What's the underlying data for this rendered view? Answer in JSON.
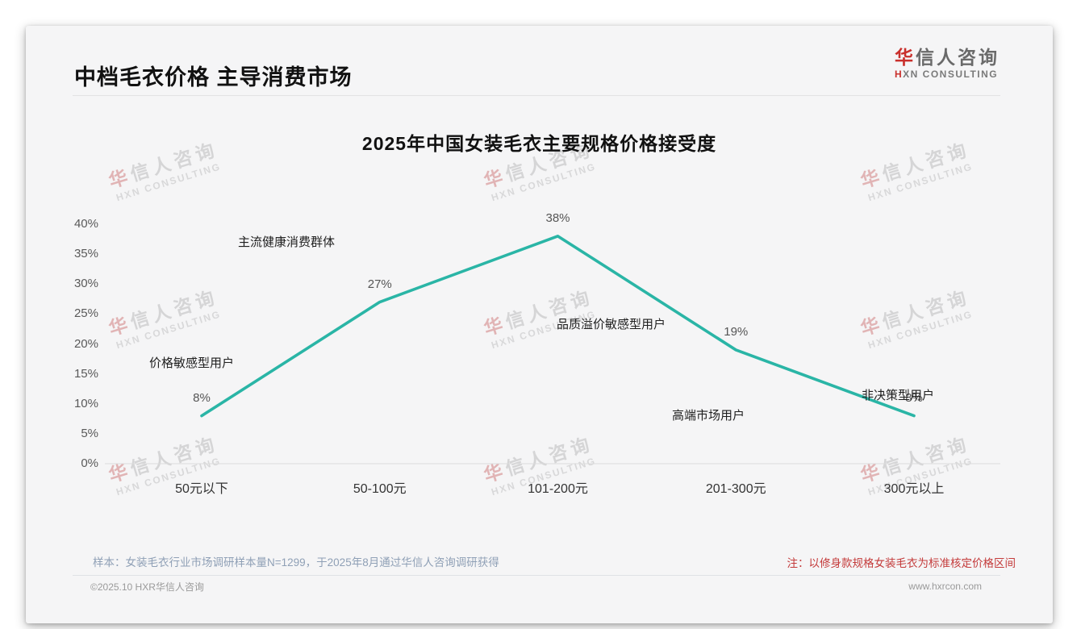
{
  "page": {
    "title": "中档毛衣价格 主导消费市场",
    "logo": {
      "first": "华",
      "rest": "信人咨询",
      "sub_first": "H",
      "sub_rest": "XN CONSULTING"
    },
    "watermark": {
      "first": "华",
      "rest": "信人咨询",
      "sub": "HXN CONSULTING"
    }
  },
  "chart_data": {
    "type": "line",
    "title": "2025年中国女装毛衣主要规格价格接受度",
    "categories": [
      "50元以下",
      "50-100元",
      "101-200元",
      "201-300元",
      "300元以上"
    ],
    "values": [
      8,
      27,
      38,
      19,
      8
    ],
    "value_suffix": "%",
    "ylabel": "",
    "xlabel": "",
    "ylim": [
      0,
      40
    ],
    "ytick_step": 5,
    "grid": false,
    "legend": "none",
    "line_color": "#2ab5a6",
    "axis_line_color": "#dcdcdc",
    "annotations": [
      {
        "text": "价格敏感型用户"
      },
      {
        "text": "主流健康消费群体"
      },
      {
        "text": "品质溢价敏感型用户"
      },
      {
        "text": "高端市场用户"
      },
      {
        "text": "非决策型用户"
      }
    ]
  },
  "footer": {
    "sample_note": "样本：女装毛衣行业市场调研样本量N=1299，于2025年8月通过华信人咨询调研获得",
    "price_note": "注：以修身款规格女装毛衣为标准核定价格区间",
    "copyright": "©2025.10 HXR华信人咨询",
    "website": "www.hxrcon.com"
  }
}
